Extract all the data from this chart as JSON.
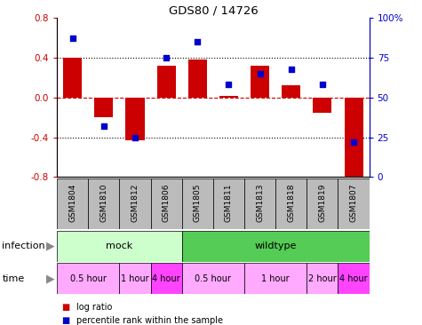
{
  "title": "GDS80 / 14726",
  "samples": [
    "GSM1804",
    "GSM1810",
    "GSM1812",
    "GSM1806",
    "GSM1805",
    "GSM1811",
    "GSM1813",
    "GSM1818",
    "GSM1819",
    "GSM1807"
  ],
  "log_ratio": [
    0.4,
    -0.2,
    -0.43,
    0.32,
    0.38,
    0.02,
    0.32,
    0.12,
    -0.15,
    -0.85
  ],
  "percentile": [
    87,
    32,
    25,
    75,
    85,
    58,
    65,
    68,
    58,
    22
  ],
  "ylim": [
    -0.8,
    0.8
  ],
  "yticks_left": [
    -0.8,
    -0.4,
    0.0,
    0.4,
    0.8
  ],
  "yticks_right": [
    0,
    25,
    50,
    75,
    100
  ],
  "bar_color": "#cc0000",
  "dot_color": "#0000cc",
  "hline_color": "#cc0000",
  "dotted_color": "#000000",
  "infection_groups": [
    {
      "label": "mock",
      "start": 0,
      "end": 4,
      "color": "#ccffcc"
    },
    {
      "label": "wildtype",
      "start": 4,
      "end": 10,
      "color": "#55cc55"
    }
  ],
  "time_groups": [
    {
      "label": "0.5 hour",
      "start": 0,
      "end": 2,
      "color": "#ffaaff"
    },
    {
      "label": "1 hour",
      "start": 2,
      "end": 3,
      "color": "#ffaaff"
    },
    {
      "label": "4 hour",
      "start": 3,
      "end": 4,
      "color": "#ff44ff"
    },
    {
      "label": "0.5 hour",
      "start": 4,
      "end": 6,
      "color": "#ffaaff"
    },
    {
      "label": "1 hour",
      "start": 6,
      "end": 8,
      "color": "#ffaaff"
    },
    {
      "label": "2 hour",
      "start": 8,
      "end": 9,
      "color": "#ffaaff"
    },
    {
      "label": "4 hour",
      "start": 9,
      "end": 10,
      "color": "#ff44ff"
    }
  ],
  "legend_items": [
    {
      "label": "log ratio",
      "color": "#cc0000"
    },
    {
      "label": "percentile rank within the sample",
      "color": "#0000cc"
    }
  ],
  "bg_color": "#ffffff",
  "sample_bg_color": "#bbbbbb",
  "arrow_color": "#888888"
}
